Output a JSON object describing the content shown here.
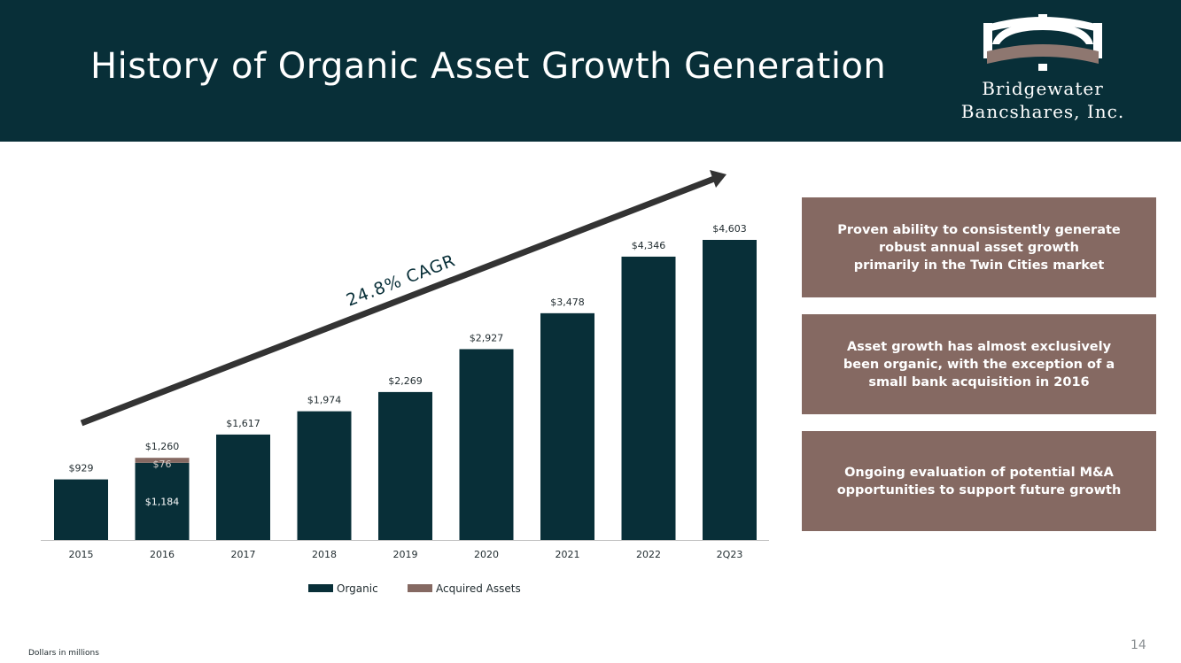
{
  "header": {
    "title": "History of Organic Asset Growth Generation",
    "background_color": "#082f38"
  },
  "logo": {
    "line1": "Bridgewater",
    "line2": "Bancshares, Inc.",
    "icon": "bridge-logo-icon",
    "colors": {
      "white": "#ffffff",
      "brown": "#8e7770"
    }
  },
  "chart_data": {
    "type": "bar",
    "stacked": true,
    "categories": [
      "2015",
      "2016",
      "2017",
      "2018",
      "2019",
      "2020",
      "2021",
      "2022",
      "2Q23"
    ],
    "series": [
      {
        "name": "Organic",
        "color": "#082f38",
        "values": [
          929,
          1184,
          1617,
          1974,
          2269,
          2927,
          3478,
          4346,
          4603
        ]
      },
      {
        "name": "Acquired Assets",
        "color": "#856962",
        "values": [
          0,
          76,
          0,
          0,
          0,
          0,
          0,
          0,
          0
        ]
      }
    ],
    "total_labels": [
      "$929",
      "$1,260",
      "$1,617",
      "$1,974",
      "$2,269",
      "$2,927",
      "$3,478",
      "$4,346",
      "$4,603"
    ],
    "segment_labels": [
      {
        "category": "2016",
        "series": "Organic",
        "text": "$1,184"
      },
      {
        "category": "2016",
        "series": "Acquired Assets",
        "text": "$76"
      }
    ],
    "annotation": "24.8% CAGR",
    "ylim": [
      0,
      4603
    ],
    "grid": false,
    "legend_position": "bottom-center"
  },
  "callouts": [
    "Proven ability to consistently generate\nrobust annual asset growth\nprimarily in the Twin Cities market",
    "Asset growth has almost exclusively\nbeen organic, with the exception of a\nsmall bank acquisition in 2016",
    "Ongoing evaluation of potential M&A\nopportunities to support future growth"
  ],
  "footer": {
    "note": "Dollars in millions",
    "page_number": "14"
  }
}
